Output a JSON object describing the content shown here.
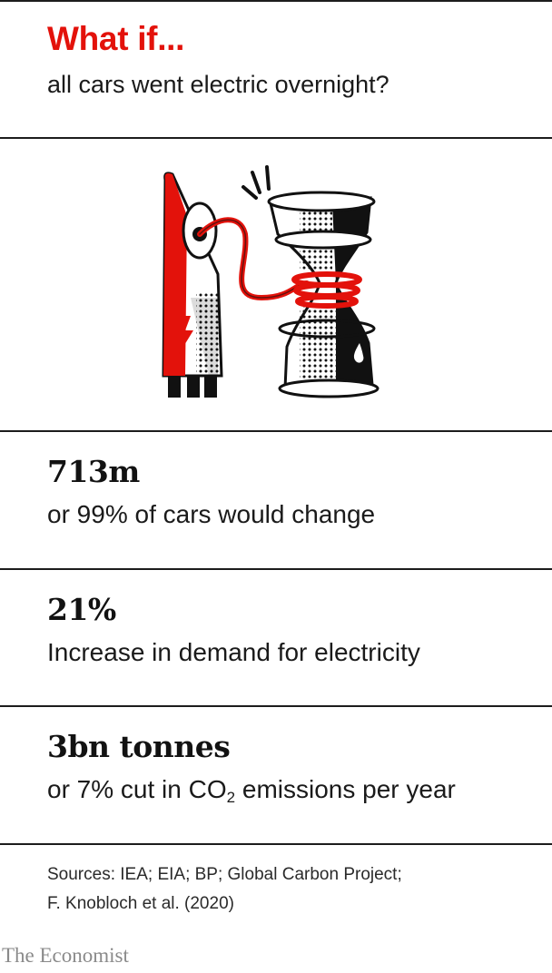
{
  "header": {
    "title": "What if...",
    "subtitle": "all cars went electric overnight?"
  },
  "illustration": {
    "icon": "electric-charger-hourglass-icon",
    "accent_color": "#e3120b"
  },
  "stats": [
    {
      "value": "713m",
      "caption": "or 99% of cars would change"
    },
    {
      "value": "21%",
      "caption": "Increase in demand for electricity"
    },
    {
      "value": "3bn tonnes",
      "caption_before": "or 7% cut in CO",
      "caption_sub": "2",
      "caption_after": " emissions per year"
    }
  ],
  "footer": {
    "sources_line1": "Sources: IEA; EIA; BP; Global Carbon Project;",
    "sources_line2": "F. Knobloch et al. (2020)",
    "brand": "The Economist"
  }
}
